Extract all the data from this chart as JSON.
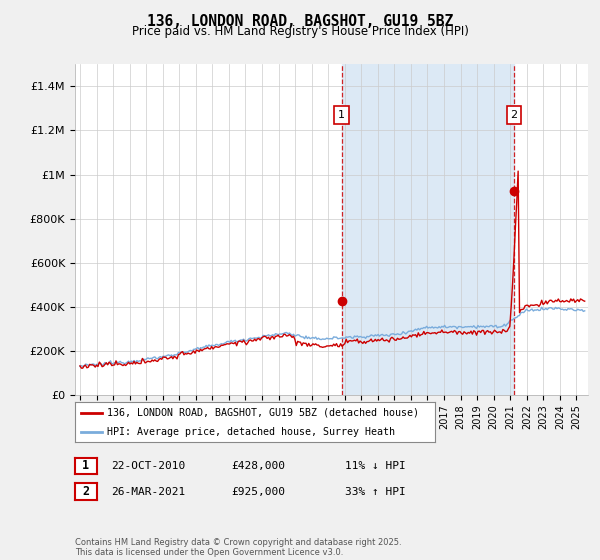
{
  "title": "136, LONDON ROAD, BAGSHOT, GU19 5BZ",
  "subtitle": "Price paid vs. HM Land Registry's House Price Index (HPI)",
  "legend_line1": "136, LONDON ROAD, BAGSHOT, GU19 5BZ (detached house)",
  "legend_line2": "HPI: Average price, detached house, Surrey Heath",
  "annotation1_date": "22-OCT-2010",
  "annotation1_price": "£428,000",
  "annotation1_hpi": "11% ↓ HPI",
  "annotation2_date": "26-MAR-2021",
  "annotation2_price": "£925,000",
  "annotation2_hpi": "33% ↑ HPI",
  "footer": "Contains HM Land Registry data © Crown copyright and database right 2025.\nThis data is licensed under the Open Government Licence v3.0.",
  "red_color": "#cc0000",
  "blue_color": "#7aacdc",
  "shade_color": "#dce9f5",
  "background_color": "#f0f0f0",
  "plot_bg": "#ffffff",
  "ylim": [
    0,
    1500000
  ],
  "yticks": [
    0,
    200000,
    400000,
    600000,
    800000,
    1000000,
    1200000,
    1400000
  ],
  "ytick_labels": [
    "£0",
    "£200K",
    "£400K",
    "£600K",
    "£800K",
    "£1M",
    "£1.2M",
    "£1.4M"
  ],
  "sale1_x": 2010.81,
  "sale1_y": 428000,
  "sale2_x": 2021.23,
  "sale2_y": 925000,
  "xmin": 1995,
  "xmax": 2025.5
}
